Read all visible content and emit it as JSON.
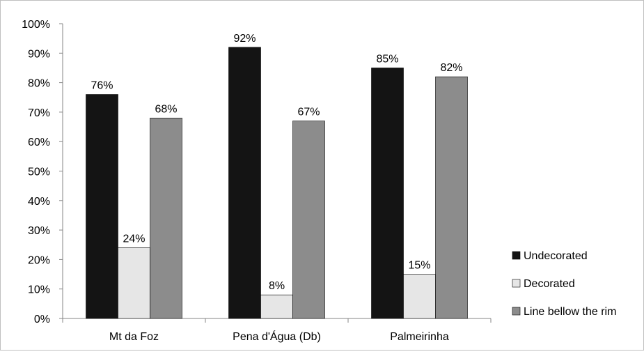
{
  "chart_data": {
    "type": "bar",
    "categories": [
      "Mt da Foz",
      "Pena d'Água (Db)",
      "Palmeirinha"
    ],
    "series": [
      {
        "name": "Undecorated",
        "values": [
          76,
          92,
          85
        ],
        "labels": [
          "76%",
          "92%",
          "85%"
        ],
        "color": "#141414"
      },
      {
        "name": "Decorated",
        "values": [
          24,
          8,
          15
        ],
        "labels": [
          "24%",
          "8%",
          "15%"
        ],
        "color": "#e6e6e6"
      },
      {
        "name": "Line bellow the rim",
        "values": [
          68,
          67,
          82
        ],
        "labels": [
          "68%",
          "67%",
          "82%"
        ],
        "color": "#8c8c8c"
      }
    ],
    "ylim": [
      0,
      100
    ],
    "yticks": [
      0,
      10,
      20,
      30,
      40,
      50,
      60,
      70,
      80,
      90,
      100
    ],
    "ytick_labels": [
      "0%",
      "10%",
      "20%",
      "30%",
      "40%",
      "50%",
      "60%",
      "70%",
      "80%",
      "90%",
      "100%"
    ],
    "title": "",
    "xlabel": "",
    "ylabel": "",
    "grid": false,
    "legend_position": "right"
  }
}
